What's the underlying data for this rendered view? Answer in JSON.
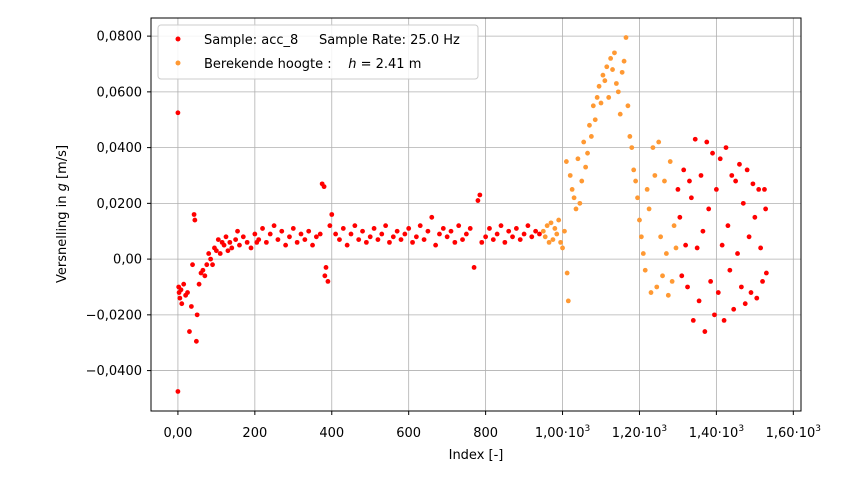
{
  "chart_data": {
    "type": "scatter",
    "xlabel": "Index [-]",
    "ylabel_parts": [
      "Versnelling in ",
      "g",
      " [m/s]"
    ],
    "xlim": [
      -70,
      1620
    ],
    "ylim": [
      -0.0545,
      0.0865
    ],
    "grid": true,
    "legend_placement": "top-left",
    "x_ticks": [
      {
        "value": 0,
        "label": "0,00",
        "sup": ""
      },
      {
        "value": 200,
        "label": "200",
        "sup": ""
      },
      {
        "value": 400,
        "label": "400",
        "sup": ""
      },
      {
        "value": 600,
        "label": "600",
        "sup": ""
      },
      {
        "value": 800,
        "label": "800",
        "sup": ""
      },
      {
        "value": 1000,
        "label": "1,00·10",
        "sup": "3"
      },
      {
        "value": 1200,
        "label": "1,20·10",
        "sup": "3"
      },
      {
        "value": 1400,
        "label": "1,40·10",
        "sup": "3"
      },
      {
        "value": 1600,
        "label": "1,60·10",
        "sup": "3"
      }
    ],
    "y_ticks": [
      {
        "value": -0.04,
        "label": "−0,0400"
      },
      {
        "value": -0.02,
        "label": "−0,0200"
      },
      {
        "value": 0.0,
        "label": "0,00"
      },
      {
        "value": 0.02,
        "label": "0,0200"
      },
      {
        "value": 0.04,
        "label": "0,0400"
      },
      {
        "value": 0.06,
        "label": "0,0600"
      },
      {
        "value": 0.08,
        "label": "0,0800"
      }
    ],
    "legend": [
      {
        "color": "#ff0000",
        "parts": [
          "Sample: acc_8     Sample Rate: 25.0 Hz"
        ],
        "italic_index": -1
      },
      {
        "color": "#ff9933",
        "parts": [
          "Berekende hoogte :    ",
          "h",
          " = 2.41 m"
        ],
        "italic_index": 1
      }
    ],
    "series": [
      {
        "color": "#ff0000",
        "description_points": [
          [
            0,
            0.0525
          ],
          [
            0,
            -0.0475
          ],
          [
            2,
            -0.01
          ],
          [
            3,
            -0.012
          ],
          [
            5,
            -0.014
          ],
          [
            8,
            -0.011
          ],
          [
            10,
            -0.016
          ],
          [
            15,
            -0.009
          ],
          [
            20,
            -0.013
          ],
          [
            25,
            -0.012
          ],
          [
            30,
            -0.026
          ],
          [
            35,
            -0.017
          ],
          [
            38,
            -0.002
          ],
          [
            42,
            0.016
          ],
          [
            44,
            0.014
          ],
          [
            48,
            -0.0295
          ],
          [
            50,
            -0.02
          ],
          [
            55,
            -0.009
          ],
          [
            60,
            -0.005
          ],
          [
            65,
            -0.004
          ],
          [
            70,
            -0.006
          ],
          [
            75,
            -0.002
          ],
          [
            80,
            0.002
          ],
          [
            85,
            0.0
          ],
          [
            90,
            -0.002
          ],
          [
            95,
            0.004
          ],
          [
            100,
            0.003
          ],
          [
            105,
            0.007
          ],
          [
            110,
            0.002
          ],
          [
            115,
            0.006
          ],
          [
            120,
            0.005
          ],
          [
            125,
            0.008
          ],
          [
            130,
            0.003
          ],
          [
            135,
            0.006
          ],
          [
            140,
            0.004
          ],
          [
            150,
            0.007
          ],
          [
            155,
            0.01
          ],
          [
            160,
            0.005
          ],
          [
            170,
            0.008
          ],
          [
            180,
            0.006
          ],
          [
            190,
            0.004
          ],
          [
            200,
            0.009
          ],
          [
            205,
            0.006
          ],
          [
            210,
            0.007
          ],
          [
            220,
            0.011
          ],
          [
            230,
            0.006
          ],
          [
            240,
            0.009
          ],
          [
            250,
            0.012
          ],
          [
            260,
            0.007
          ],
          [
            270,
            0.01
          ],
          [
            280,
            0.005
          ],
          [
            290,
            0.008
          ],
          [
            300,
            0.011
          ],
          [
            310,
            0.006
          ],
          [
            320,
            0.009
          ],
          [
            330,
            0.007
          ],
          [
            340,
            0.01
          ],
          [
            350,
            0.005
          ],
          [
            360,
            0.008
          ],
          [
            370,
            0.009
          ],
          [
            375,
            0.027
          ],
          [
            380,
            0.026
          ],
          [
            382,
            -0.006
          ],
          [
            385,
            -0.003
          ],
          [
            390,
            -0.008
          ],
          [
            395,
            0.012
          ],
          [
            400,
            0.016
          ],
          [
            410,
            0.009
          ],
          [
            420,
            0.007
          ],
          [
            430,
            0.011
          ],
          [
            440,
            0.005
          ],
          [
            450,
            0.009
          ],
          [
            460,
            0.012
          ],
          [
            470,
            0.007
          ],
          [
            480,
            0.01
          ],
          [
            490,
            0.006
          ],
          [
            500,
            0.008
          ],
          [
            510,
            0.011
          ],
          [
            520,
            0.007
          ],
          [
            530,
            0.009
          ],
          [
            540,
            0.012
          ],
          [
            550,
            0.006
          ],
          [
            560,
            0.008
          ],
          [
            570,
            0.01
          ],
          [
            580,
            0.007
          ],
          [
            590,
            0.009
          ],
          [
            600,
            0.011
          ],
          [
            610,
            0.006
          ],
          [
            620,
            0.008
          ],
          [
            630,
            0.012
          ],
          [
            640,
            0.007
          ],
          [
            650,
            0.01
          ],
          [
            660,
            0.015
          ],
          [
            670,
            0.005
          ],
          [
            680,
            0.009
          ],
          [
            690,
            0.011
          ],
          [
            700,
            0.008
          ],
          [
            710,
            0.01
          ],
          [
            720,
            0.006
          ],
          [
            730,
            0.012
          ],
          [
            740,
            0.007
          ],
          [
            750,
            0.009
          ],
          [
            760,
            0.011
          ],
          [
            770,
            -0.003
          ],
          [
            780,
            0.021
          ],
          [
            785,
            0.023
          ],
          [
            790,
            0.006
          ],
          [
            800,
            0.008
          ],
          [
            810,
            0.011
          ],
          [
            820,
            0.007
          ],
          [
            830,
            0.009
          ],
          [
            840,
            0.012
          ],
          [
            850,
            0.006
          ],
          [
            860,
            0.01
          ],
          [
            870,
            0.008
          ],
          [
            880,
            0.011
          ],
          [
            890,
            0.007
          ],
          [
            900,
            0.009
          ],
          [
            910,
            0.012
          ],
          [
            920,
            0.008
          ],
          [
            930,
            0.01
          ],
          [
            940,
            0.009
          ],
          [
            1300,
            0.025
          ],
          [
            1305,
            0.015
          ],
          [
            1310,
            -0.006
          ],
          [
            1315,
            0.032
          ],
          [
            1320,
            0.005
          ],
          [
            1325,
            -0.01
          ],
          [
            1330,
            0.028
          ],
          [
            1335,
            0.022
          ],
          [
            1340,
            -0.022
          ],
          [
            1345,
            0.043
          ],
          [
            1350,
            0.004
          ],
          [
            1355,
            -0.015
          ],
          [
            1360,
            0.03
          ],
          [
            1365,
            0.01
          ],
          [
            1370,
            -0.026
          ],
          [
            1375,
            0.042
          ],
          [
            1380,
            0.018
          ],
          [
            1385,
            -0.008
          ],
          [
            1390,
            0.038
          ],
          [
            1395,
            -0.02
          ],
          [
            1400,
            0.025
          ],
          [
            1405,
            -0.012
          ],
          [
            1410,
            0.036
          ],
          [
            1415,
            0.005
          ],
          [
            1420,
            -0.022
          ],
          [
            1425,
            0.04
          ],
          [
            1430,
            0.012
          ],
          [
            1435,
            -0.004
          ],
          [
            1440,
            0.03
          ],
          [
            1445,
            -0.018
          ],
          [
            1450,
            0.028
          ],
          [
            1455,
            0.002
          ],
          [
            1460,
            0.034
          ],
          [
            1465,
            -0.01
          ],
          [
            1470,
            0.02
          ],
          [
            1475,
            -0.016
          ],
          [
            1480,
            0.032
          ],
          [
            1485,
            0.008
          ],
          [
            1490,
            -0.012
          ],
          [
            1495,
            0.027
          ],
          [
            1500,
            0.015
          ],
          [
            1505,
            -0.014
          ],
          [
            1510,
            0.025
          ],
          [
            1515,
            0.004
          ],
          [
            1520,
            -0.008
          ],
          [
            1525,
            0.025
          ],
          [
            1528,
            0.018
          ],
          [
            1530,
            -0.005
          ]
        ]
      },
      {
        "color": "#ff9933",
        "description_points": [
          [
            950,
            0.01
          ],
          [
            955,
            0.008
          ],
          [
            960,
            0.012
          ],
          [
            965,
            0.006
          ],
          [
            970,
            0.013
          ],
          [
            975,
            0.007
          ],
          [
            980,
            0.011
          ],
          [
            985,
            0.009
          ],
          [
            990,
            0.014
          ],
          [
            995,
            0.006
          ],
          [
            1000,
            0.004
          ],
          [
            1005,
            0.01
          ],
          [
            1010,
            0.035
          ],
          [
            1012,
            -0.005
          ],
          [
            1015,
            -0.015
          ],
          [
            1020,
            0.03
          ],
          [
            1025,
            0.025
          ],
          [
            1030,
            0.022
          ],
          [
            1035,
            0.018
          ],
          [
            1040,
            0.036
          ],
          [
            1045,
            0.02
          ],
          [
            1050,
            0.028
          ],
          [
            1055,
            0.042
          ],
          [
            1060,
            0.033
          ],
          [
            1065,
            0.038
          ],
          [
            1070,
            0.048
          ],
          [
            1075,
            0.044
          ],
          [
            1080,
            0.055
          ],
          [
            1085,
            0.05
          ],
          [
            1090,
            0.058
          ],
          [
            1095,
            0.062
          ],
          [
            1100,
            0.056
          ],
          [
            1105,
            0.066
          ],
          [
            1110,
            0.064
          ],
          [
            1115,
            0.069
          ],
          [
            1120,
            0.058
          ],
          [
            1125,
            0.072
          ],
          [
            1130,
            0.068
          ],
          [
            1135,
            0.074
          ],
          [
            1140,
            0.063
          ],
          [
            1145,
            0.06
          ],
          [
            1150,
            0.052
          ],
          [
            1155,
            0.067
          ],
          [
            1160,
            0.071
          ],
          [
            1165,
            0.0795
          ],
          [
            1170,
            0.055
          ],
          [
            1175,
            0.044
          ],
          [
            1180,
            0.04
          ],
          [
            1185,
            0.032
          ],
          [
            1190,
            0.028
          ],
          [
            1195,
            0.022
          ],
          [
            1200,
            0.014
          ],
          [
            1205,
            0.008
          ],
          [
            1210,
            0.002
          ],
          [
            1215,
            -0.004
          ],
          [
            1220,
            0.025
          ],
          [
            1225,
            0.018
          ],
          [
            1230,
            -0.012
          ],
          [
            1235,
            0.04
          ],
          [
            1240,
            0.03
          ],
          [
            1245,
            -0.01
          ],
          [
            1250,
            0.042
          ],
          [
            1255,
            0.008
          ],
          [
            1260,
            -0.006
          ],
          [
            1265,
            0.028
          ],
          [
            1270,
            0.002
          ],
          [
            1275,
            -0.013
          ],
          [
            1280,
            0.035
          ],
          [
            1285,
            -0.008
          ],
          [
            1290,
            0.012
          ],
          [
            1295,
            0.004
          ]
        ]
      }
    ]
  }
}
